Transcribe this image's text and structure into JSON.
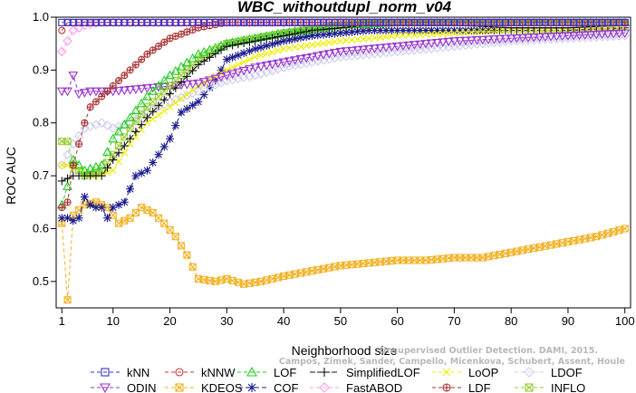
{
  "chart_data": {
    "type": "line",
    "title": "WBC_withoutdupl_norm_v04",
    "xlabel": "Neighborhood size",
    "ylabel": "ROC AUC",
    "xlim": [
      0,
      101
    ],
    "ylim": [
      0.45,
      1.0
    ],
    "x_ticks": [
      1,
      10,
      20,
      30,
      40,
      50,
      60,
      70,
      80,
      90,
      100
    ],
    "y_ticks": [
      0.5,
      0.6,
      0.7,
      0.8,
      0.9,
      1.0
    ],
    "grid": false,
    "legend_position": "bottom",
    "watermark": [
      "Campos, Zimek, Sander, Campello, Micenkova, Schubert, Assent, Houle",
      "Unsupervised Outlier Detection. DAMI, 2015."
    ],
    "series": [
      {
        "name": "kNN",
        "color": "#3333cc",
        "marker": "square",
        "dash": "4,3",
        "knots": [
          [
            1,
            0.99
          ],
          [
            100,
            0.99
          ]
        ]
      },
      {
        "name": "kNNW",
        "color": "#cc3333",
        "marker": "circle",
        "dash": "4,3",
        "knots": [
          [
            1,
            0.975
          ],
          [
            2,
            0.99
          ],
          [
            100,
            0.99
          ]
        ]
      },
      {
        "name": "LOF",
        "color": "#22cc22",
        "marker": "triangle-up",
        "dash": "4,3",
        "knots": [
          [
            1,
            0.645
          ],
          [
            2,
            0.68
          ],
          [
            3,
            0.73
          ],
          [
            5,
            0.71
          ],
          [
            8,
            0.72
          ],
          [
            10,
            0.77
          ],
          [
            13,
            0.81
          ],
          [
            16,
            0.85
          ],
          [
            20,
            0.89
          ],
          [
            25,
            0.93
          ],
          [
            30,
            0.95
          ],
          [
            35,
            0.96
          ],
          [
            40,
            0.97
          ],
          [
            50,
            0.985
          ],
          [
            60,
            0.99
          ],
          [
            100,
            0.99
          ]
        ]
      },
      {
        "name": "SimplifiedLOF",
        "color": "#111111",
        "marker": "plus",
        "dash": "6,2",
        "knots": [
          [
            1,
            0.69
          ],
          [
            2,
            0.695
          ],
          [
            3,
            0.7
          ],
          [
            5,
            0.7
          ],
          [
            8,
            0.7
          ],
          [
            10,
            0.73
          ],
          [
            13,
            0.77
          ],
          [
            16,
            0.81
          ],
          [
            20,
            0.855
          ],
          [
            25,
            0.91
          ],
          [
            30,
            0.945
          ],
          [
            35,
            0.955
          ],
          [
            40,
            0.965
          ],
          [
            45,
            0.975
          ],
          [
            50,
            0.98
          ],
          [
            55,
            0.985
          ],
          [
            60,
            0.985
          ],
          [
            70,
            0.985
          ],
          [
            80,
            0.98
          ],
          [
            90,
            0.98
          ],
          [
            100,
            0.985
          ]
        ]
      },
      {
        "name": "LoOP",
        "color": "#eeee00",
        "marker": "cross",
        "dash": "4,3",
        "knots": [
          [
            1,
            0.72
          ],
          [
            2,
            0.72
          ],
          [
            4,
            0.71
          ],
          [
            7,
            0.7
          ],
          [
            10,
            0.71
          ],
          [
            13,
            0.76
          ],
          [
            16,
            0.8
          ],
          [
            20,
            0.83
          ],
          [
            25,
            0.87
          ],
          [
            30,
            0.9
          ],
          [
            35,
            0.925
          ],
          [
            40,
            0.94
          ],
          [
            50,
            0.955
          ],
          [
            60,
            0.965
          ],
          [
            70,
            0.97
          ],
          [
            80,
            0.975
          ],
          [
            90,
            0.975
          ],
          [
            100,
            0.98
          ]
        ]
      },
      {
        "name": "LDOF",
        "color": "#ccccee",
        "marker": "diamond",
        "dash": "4,3",
        "knots": [
          [
            1,
            0.72
          ],
          [
            3,
            0.76
          ],
          [
            5,
            0.79
          ],
          [
            8,
            0.8
          ],
          [
            10,
            0.79
          ],
          [
            13,
            0.8
          ],
          [
            16,
            0.82
          ],
          [
            20,
            0.84
          ],
          [
            25,
            0.86
          ],
          [
            30,
            0.88
          ],
          [
            35,
            0.89
          ],
          [
            40,
            0.905
          ],
          [
            45,
            0.915
          ],
          [
            50,
            0.925
          ],
          [
            60,
            0.935
          ],
          [
            70,
            0.945
          ],
          [
            80,
            0.955
          ],
          [
            90,
            0.96
          ],
          [
            100,
            0.965
          ]
        ]
      },
      {
        "name": "ODIN",
        "color": "#9933cc",
        "marker": "triangle-down",
        "dash": "4,3",
        "knots": [
          [
            1,
            0.86
          ],
          [
            2,
            0.86
          ],
          [
            3,
            0.89
          ],
          [
            4,
            0.855
          ],
          [
            6,
            0.86
          ],
          [
            10,
            0.86
          ],
          [
            15,
            0.865
          ],
          [
            20,
            0.87
          ],
          [
            25,
            0.875
          ],
          [
            30,
            0.89
          ],
          [
            35,
            0.905
          ],
          [
            40,
            0.915
          ],
          [
            45,
            0.925
          ],
          [
            50,
            0.935
          ],
          [
            60,
            0.945
          ],
          [
            70,
            0.955
          ],
          [
            80,
            0.96
          ],
          [
            90,
            0.965
          ],
          [
            100,
            0.97
          ]
        ]
      },
      {
        "name": "KDEOS",
        "color": "#f2b01e",
        "marker": "square-x",
        "dash": "4,3",
        "knots": [
          [
            1,
            0.61
          ],
          [
            2,
            0.465
          ],
          [
            3,
            0.625
          ],
          [
            5,
            0.645
          ],
          [
            7,
            0.65
          ],
          [
            9,
            0.64
          ],
          [
            11,
            0.61
          ],
          [
            13,
            0.62
          ],
          [
            15,
            0.64
          ],
          [
            17,
            0.63
          ],
          [
            19,
            0.61
          ],
          [
            21,
            0.585
          ],
          [
            23,
            0.55
          ],
          [
            25,
            0.505
          ],
          [
            28,
            0.5
          ],
          [
            30,
            0.505
          ],
          [
            33,
            0.495
          ],
          [
            36,
            0.5
          ],
          [
            40,
            0.51
          ],
          [
            45,
            0.52
          ],
          [
            50,
            0.53
          ],
          [
            55,
            0.535
          ],
          [
            60,
            0.54
          ],
          [
            65,
            0.54
          ],
          [
            70,
            0.545
          ],
          [
            75,
            0.545
          ],
          [
            80,
            0.555
          ],
          [
            85,
            0.565
          ],
          [
            90,
            0.575
          ],
          [
            95,
            0.585
          ],
          [
            100,
            0.6
          ]
        ]
      },
      {
        "name": "COF",
        "color": "#1a1a8c",
        "marker": "asterisk",
        "dash": "6,3",
        "knots": [
          [
            1,
            0.62
          ],
          [
            2,
            0.62
          ],
          [
            3,
            0.615
          ],
          [
            4,
            0.62
          ],
          [
            5,
            0.66
          ],
          [
            6,
            0.645
          ],
          [
            7,
            0.64
          ],
          [
            8,
            0.64
          ],
          [
            9,
            0.62
          ],
          [
            10,
            0.64
          ],
          [
            12,
            0.65
          ],
          [
            14,
            0.7
          ],
          [
            16,
            0.71
          ],
          [
            18,
            0.74
          ],
          [
            20,
            0.77
          ],
          [
            22,
            0.82
          ],
          [
            25,
            0.84
          ],
          [
            28,
            0.88
          ],
          [
            30,
            0.92
          ],
          [
            35,
            0.94
          ],
          [
            40,
            0.955
          ],
          [
            45,
            0.965
          ],
          [
            50,
            0.97
          ],
          [
            55,
            0.975
          ],
          [
            60,
            0.975
          ],
          [
            70,
            0.975
          ],
          [
            80,
            0.975
          ],
          [
            90,
            0.975
          ],
          [
            100,
            0.98
          ]
        ]
      },
      {
        "name": "FastABOD",
        "color": "#ff99ee",
        "marker": "diamond",
        "dash": "4,3",
        "knots": [
          [
            1,
            0.935
          ],
          [
            3,
            0.975
          ],
          [
            5,
            0.985
          ],
          [
            8,
            0.99
          ],
          [
            100,
            0.99
          ]
        ]
      },
      {
        "name": "LDF",
        "color": "#aa3333",
        "marker": "circle-plus",
        "dash": "4,3",
        "knots": [
          [
            1,
            0.64
          ],
          [
            2,
            0.65
          ],
          [
            3,
            0.72
          ],
          [
            4,
            0.76
          ],
          [
            5,
            0.8
          ],
          [
            6,
            0.83
          ],
          [
            8,
            0.85
          ],
          [
            10,
            0.87
          ],
          [
            13,
            0.9
          ],
          [
            16,
            0.93
          ],
          [
            20,
            0.96
          ],
          [
            25,
            0.98
          ],
          [
            30,
            0.99
          ],
          [
            100,
            0.99
          ]
        ]
      },
      {
        "name": "INFLO",
        "color": "#99cc33",
        "marker": "square-x",
        "dash": "4,3",
        "knots": [
          [
            1,
            0.765
          ],
          [
            2,
            0.765
          ],
          [
            3,
            0.72
          ],
          [
            5,
            0.7
          ],
          [
            8,
            0.71
          ],
          [
            10,
            0.74
          ],
          [
            13,
            0.79
          ],
          [
            16,
            0.83
          ],
          [
            20,
            0.87
          ],
          [
            25,
            0.92
          ],
          [
            30,
            0.95
          ],
          [
            35,
            0.96
          ],
          [
            40,
            0.97
          ],
          [
            50,
            0.985
          ],
          [
            60,
            0.99
          ],
          [
            100,
            0.99
          ]
        ]
      }
    ],
    "legend_rows": [
      [
        "kNN",
        "kNNW",
        "LOF",
        "SimplifiedLOF",
        "LoOP",
        "LDOF"
      ],
      [
        "ODIN",
        "KDEOS",
        "COF",
        "FastABOD",
        "LDF",
        "INFLO"
      ]
    ]
  }
}
